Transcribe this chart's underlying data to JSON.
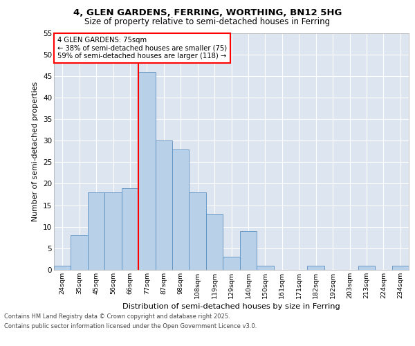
{
  "title_line1": "4, GLEN GARDENS, FERRING, WORTHING, BN12 5HG",
  "title_line2": "Size of property relative to semi-detached houses in Ferring",
  "xlabel": "Distribution of semi-detached houses by size in Ferring",
  "ylabel": "Number of semi-detached properties",
  "categories": [
    "24sqm",
    "35sqm",
    "45sqm",
    "56sqm",
    "66sqm",
    "77sqm",
    "87sqm",
    "98sqm",
    "108sqm",
    "119sqm",
    "129sqm",
    "140sqm",
    "150sqm",
    "161sqm",
    "171sqm",
    "182sqm",
    "192sqm",
    "203sqm",
    "213sqm",
    "224sqm",
    "234sqm"
  ],
  "values": [
    1,
    8,
    18,
    18,
    19,
    46,
    30,
    28,
    18,
    13,
    3,
    9,
    1,
    0,
    0,
    1,
    0,
    0,
    1,
    0,
    1
  ],
  "bar_color": "#b8d0e8",
  "bar_edge_color": "#5a8fc0",
  "pct_smaller": 38,
  "pct_larger": 59,
  "n_smaller": 75,
  "n_larger": 118,
  "vline_bin_index": 5,
  "ylim": [
    0,
    55
  ],
  "yticks": [
    0,
    5,
    10,
    15,
    20,
    25,
    30,
    35,
    40,
    45,
    50,
    55
  ],
  "plot_bg_color": "#dde6f0",
  "footer_line1": "Contains HM Land Registry data © Crown copyright and database right 2025.",
  "footer_line2": "Contains public sector information licensed under the Open Government Licence v3.0."
}
